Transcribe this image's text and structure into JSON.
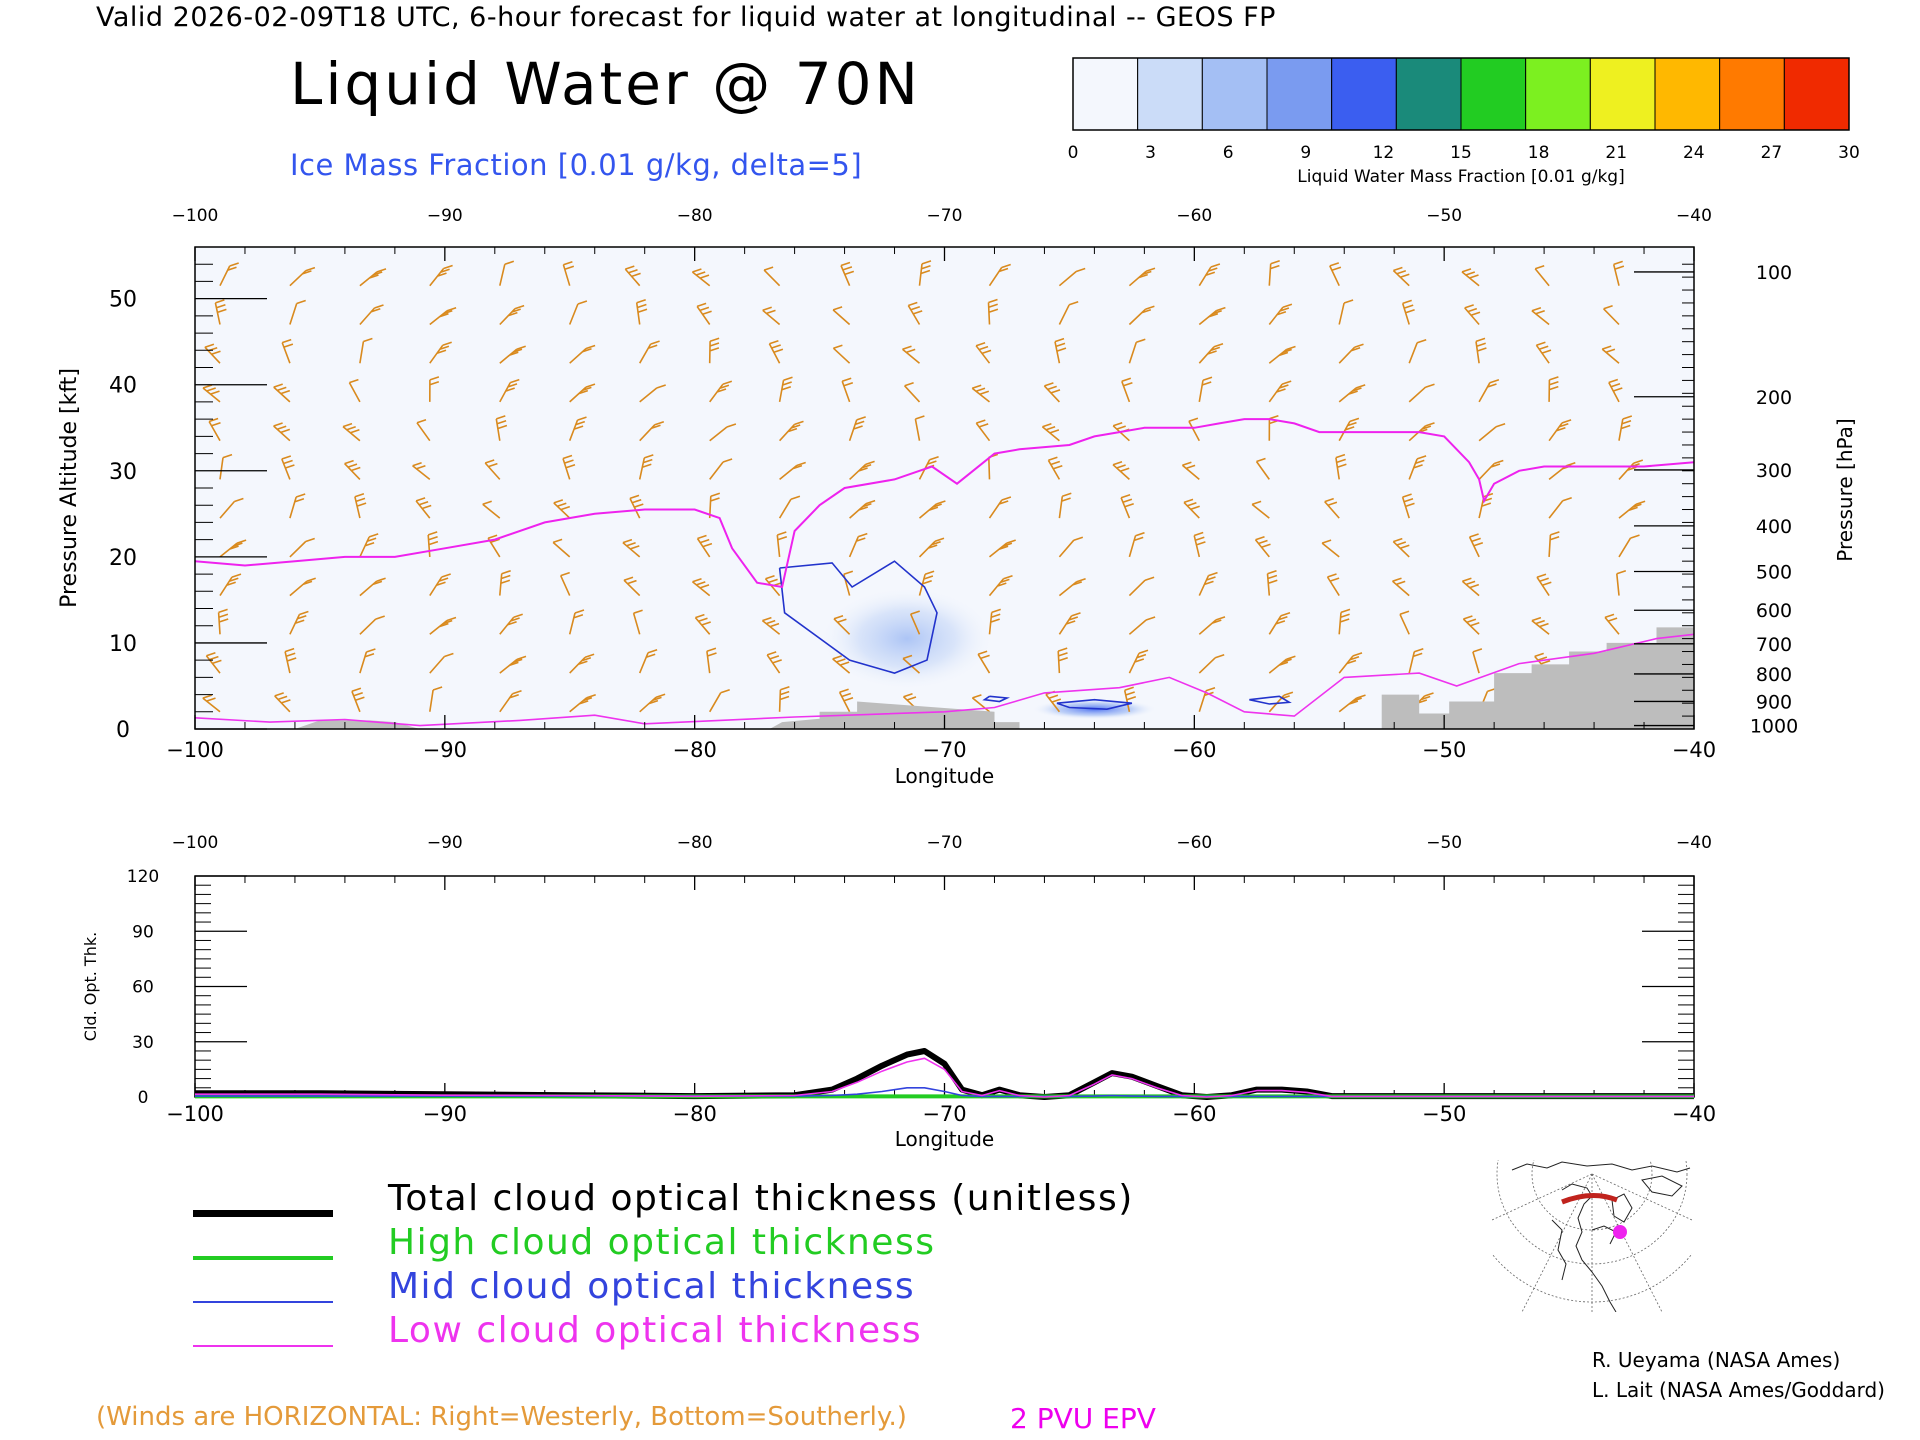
{
  "header": {
    "valid_line": "Valid 2026-02-09T18 UTC, 6-hour forecast for liquid water at longitudinal -- GEOS FP",
    "title": "Liquid Water @ 70N",
    "ice_label": "Ice Mass Fraction [0.01 g/kg, delta=5]"
  },
  "colorbar": {
    "ticks": [
      "0",
      "3",
      "6",
      "9",
      "12",
      "15",
      "18",
      "21",
      "24",
      "27",
      "30"
    ],
    "label": "Liquid Water Mass Fraction [0.01 g/kg]",
    "colors": [
      "#f4f7fd",
      "#cbdcf8",
      "#a4bff4",
      "#7a9bf0",
      "#3b5ef0",
      "#1a8a7a",
      "#22cc22",
      "#7cf020",
      "#eef020",
      "#ffb800",
      "#ff7a00",
      "#f02a00"
    ]
  },
  "legend": {
    "items": [
      {
        "label": "Total cloud optical thickness (unitless)",
        "color": "#000000"
      },
      {
        "label": "High cloud optical thickness",
        "color": "#22cc22"
      },
      {
        "label": "Mid cloud optical thickness",
        "color": "#3344dd"
      },
      {
        "label": "Low cloud optical thickness",
        "color": "#ee33ee"
      }
    ]
  },
  "footer": {
    "winds_note": "(Winds are HORIZONTAL: Right=Westerly, Bottom=Southerly.)",
    "pvu_note": "2 PVU EPV",
    "credit_1": "R. Ueyama (NASA Ames)",
    "credit_2": "L. Lait (NASA Ames/Goddard)"
  },
  "chart_data": [
    {
      "type": "heatmap",
      "xlabel": "Longitude",
      "ylabel_left": "Pressure Altitude [kft]",
      "ylabel_right": "Pressure [hPa]",
      "xlim": [
        -100,
        -40
      ],
      "ylim": [
        0,
        56
      ],
      "x_ticks": [
        "-100",
        "-90",
        "-80",
        "-70",
        "-60",
        "-50",
        "-40"
      ],
      "y_ticks_left": [
        "0",
        "10",
        "20",
        "30",
        "40",
        "50"
      ],
      "y_ticks_right": [
        {
          "label": "100",
          "kft": 53.1
        },
        {
          "label": "200",
          "kft": 38.6
        },
        {
          "label": "300",
          "kft": 30.1
        },
        {
          "label": "400",
          "kft": 23.6
        },
        {
          "label": "500",
          "kft": 18.3
        },
        {
          "label": "600",
          "kft": 13.8
        },
        {
          "label": "700",
          "kft": 9.9
        },
        {
          "label": "800",
          "kft": 6.4
        },
        {
          "label": "900",
          "kft": 3.2
        },
        {
          "label": "1000",
          "kft": 0.4
        }
      ],
      "tropopause_2pvu": {
        "lon": [
          -100,
          -98,
          -96,
          -94,
          -92,
          -90,
          -88,
          -86,
          -84,
          -82,
          -80,
          -79,
          -78.5,
          -77.5,
          -76.5,
          -76,
          -75,
          -74,
          -72,
          -71,
          -70.5,
          -69.5,
          -68,
          -67,
          -65,
          -64,
          -63,
          -62,
          -61,
          -60,
          -59,
          -58,
          -57,
          -56,
          -55,
          -53,
          -51,
          -50,
          -49,
          -48.6,
          -48.4,
          -48,
          -47,
          -46,
          -45,
          -43,
          -42,
          -40
        ],
        "kft": [
          19.5,
          19,
          19.5,
          20,
          20,
          21,
          22,
          24,
          25,
          25.5,
          25.5,
          24.5,
          21,
          17,
          16.5,
          23,
          26,
          28,
          29,
          30,
          30.5,
          28.5,
          32,
          32.5,
          33,
          34,
          34.5,
          35,
          35,
          35,
          35.5,
          36,
          36,
          35.5,
          34.5,
          34.5,
          34.5,
          34,
          31,
          29,
          26.5,
          28.5,
          30,
          30.5,
          30.5,
          30.5,
          30.5,
          31
        ]
      },
      "ice_contour_5": {
        "lon": [
          -76.6,
          -74.5,
          -73.7,
          -72,
          -70.8,
          -70.3,
          -70.7,
          -72,
          -73.8,
          -76.4,
          -76.6
        ],
        "kft": [
          18.7,
          19.3,
          16.5,
          19.5,
          16.5,
          13.5,
          8,
          6.5,
          8,
          13.5,
          18.7
        ]
      },
      "ice_contour_small": [
        {
          "lon": [
            -68.2,
            -67.5,
            -67.8,
            -68.4,
            -68.2
          ],
          "kft": [
            3.8,
            3.6,
            3.2,
            3.4,
            3.8
          ]
        },
        {
          "lon": [
            -65.5,
            -64,
            -62.5,
            -63.5,
            -65.0,
            -65.5
          ],
          "kft": [
            3.0,
            3.4,
            3.0,
            2.3,
            2.5,
            3.0
          ]
        },
        {
          "lon": [
            -57.8,
            -56.6,
            -56.2,
            -57.0,
            -57.8
          ],
          "kft": [
            3.4,
            3.8,
            3.1,
            2.9,
            3.4
          ]
        }
      ],
      "liquid_water_blobs": [
        {
          "lon": -71.5,
          "kft": 10.5,
          "rx_deg": 3.5,
          "ry_kft": 6,
          "value": 2.5
        },
        {
          "lon": -64,
          "kft": 2.3,
          "rx_deg": 2.5,
          "ry_kft": 1.2,
          "value": 4
        }
      ],
      "terrain": {
        "lon": [
          -100,
          -96,
          -95,
          -93,
          -92,
          -91,
          -77,
          -76.5,
          -75,
          -75,
          -73.5,
          -73.5,
          -68,
          -68,
          -67,
          -67,
          -52.5,
          -52.5,
          -51,
          -51,
          -49.8,
          -49.8,
          -48,
          -48,
          -46.5,
          -46.5,
          -45,
          -45,
          -43.5,
          -43.5,
          -41.5,
          -41.5,
          -40
        ],
        "kft": [
          0,
          0,
          1,
          1,
          0.8,
          0,
          0,
          0.8,
          1.2,
          2,
          2,
          3.2,
          2,
          0.8,
          0.8,
          0,
          0,
          4,
          4,
          1.8,
          1.8,
          3.2,
          3.2,
          6.5,
          6.5,
          7.5,
          7.5,
          9,
          9,
          10,
          10,
          11.8,
          11.8
        ]
      }
    },
    {
      "type": "line",
      "xlabel": "Longitude",
      "ylabel": "Cld. Opt. Thk.",
      "xlim": [
        -100,
        -40
      ],
      "ylim": [
        0,
        120
      ],
      "x_ticks": [
        "-100",
        "-90",
        "-80",
        "-70",
        "-60",
        "-50",
        "-40"
      ],
      "y_ticks": [
        "0",
        "30",
        "60",
        "90",
        "120"
      ],
      "x": [
        -100,
        -95,
        -90,
        -85,
        -80,
        -76,
        -74.5,
        -73.5,
        -72.5,
        -71.5,
        -70.8,
        -70,
        -69.3,
        -68.5,
        -67.8,
        -67,
        -66,
        -65,
        -64,
        -63.3,
        -62.5,
        -61.5,
        -60.5,
        -59.5,
        -58.5,
        -57.5,
        -56.5,
        -55.5,
        -54.5,
        -50,
        -45,
        -40
      ],
      "series": [
        {
          "name": "Total cloud optical thickness (unitless)",
          "values": [
            2,
            2,
            1.5,
            1,
            0.5,
            1,
            4,
            10,
            17,
            23,
            25,
            18,
            4,
            1,
            4,
            1,
            0,
            1,
            8,
            13,
            11,
            6,
            1,
            0,
            1,
            4,
            4,
            3,
            0.5,
            0.5,
            0.5,
            0.5
          ]
        },
        {
          "name": "High cloud optical thickness",
          "values": [
            0.3,
            0.3,
            0.3,
            0.3,
            0.3,
            0.3,
            0.3,
            0.3,
            0.3,
            0.3,
            0.3,
            0.3,
            0.3,
            0.3,
            0.3,
            0.3,
            0.3,
            0.3,
            0.3,
            0.3,
            0.3,
            0.3,
            0.3,
            0.3,
            0.3,
            0.3,
            0.3,
            0.3,
            0.3,
            0.3,
            0.3,
            0.3
          ]
        },
        {
          "name": "Mid cloud optical thickness",
          "values": [
            0.5,
            0.5,
            0.5,
            0.5,
            0.5,
            0.5,
            0.8,
            1.5,
            3,
            5,
            5,
            3,
            0.8,
            0.3,
            0.3,
            0.3,
            0.3,
            0.3,
            0.5,
            0.8,
            0.5,
            0.3,
            0.3,
            0.3,
            0.3,
            0.3,
            0.3,
            0.3,
            0.3,
            0.3,
            0.3,
            0.3
          ]
        },
        {
          "name": "Low cloud optical thickness",
          "values": [
            1.5,
            1.5,
            1,
            0.8,
            0.4,
            0.8,
            3,
            8,
            14,
            19,
            21,
            15,
            3,
            0.8,
            3.5,
            0.8,
            0,
            0.8,
            7,
            12,
            10,
            5,
            0.8,
            0,
            0.8,
            3.5,
            3.5,
            2.5,
            0.3,
            0.3,
            0.3,
            0.3
          ]
        }
      ]
    }
  ]
}
